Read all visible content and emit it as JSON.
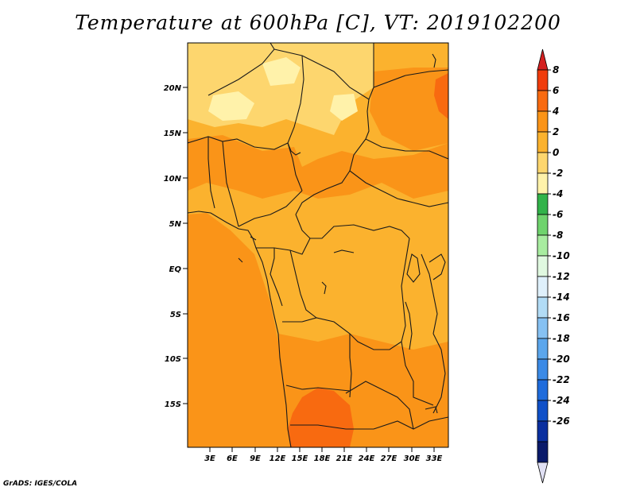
{
  "title": "Temperature at 600hPa [C], VT: 2019102200",
  "credit": "GrADS: IGES/COLA",
  "lat_labels": [
    "20N",
    "15N",
    "10N",
    "5N",
    "EQ",
    "5S",
    "10S",
    "15S"
  ],
  "lon_labels": [
    "3E",
    "6E",
    "9E",
    "12E",
    "15E",
    "18E",
    "21E",
    "24E",
    "27E",
    "30E",
    "33E"
  ],
  "colorbar": {
    "labels": [
      "8",
      "6",
      "4",
      "2",
      "0",
      "-2",
      "-4",
      "-6",
      "-8",
      "-10",
      "-12",
      "-14",
      "-16",
      "-18",
      "-20",
      "-22",
      "-24",
      "-26"
    ],
    "colors": [
      "#d42020",
      "#f03c0c",
      "#f86a10",
      "#fa9418",
      "#fbb22e",
      "#fdd66e",
      "#fff2aa",
      "#32b34a",
      "#6fd36d",
      "#a8eca0",
      "#e0f8e0",
      "#dff0fb",
      "#b2dcf6",
      "#86c1f2",
      "#5ba6ec",
      "#3b8ae6",
      "#1f6cdc",
      "#0f50c8",
      "#0a2f9f",
      "#0a1a6a",
      "#e0e0f4"
    ]
  },
  "palette": {
    "background": "#fbb22e",
    "warm": "#fa9418",
    "hot": "#f86a10",
    "mild": "#fdd66e",
    "cool": "#fff2aa"
  }
}
